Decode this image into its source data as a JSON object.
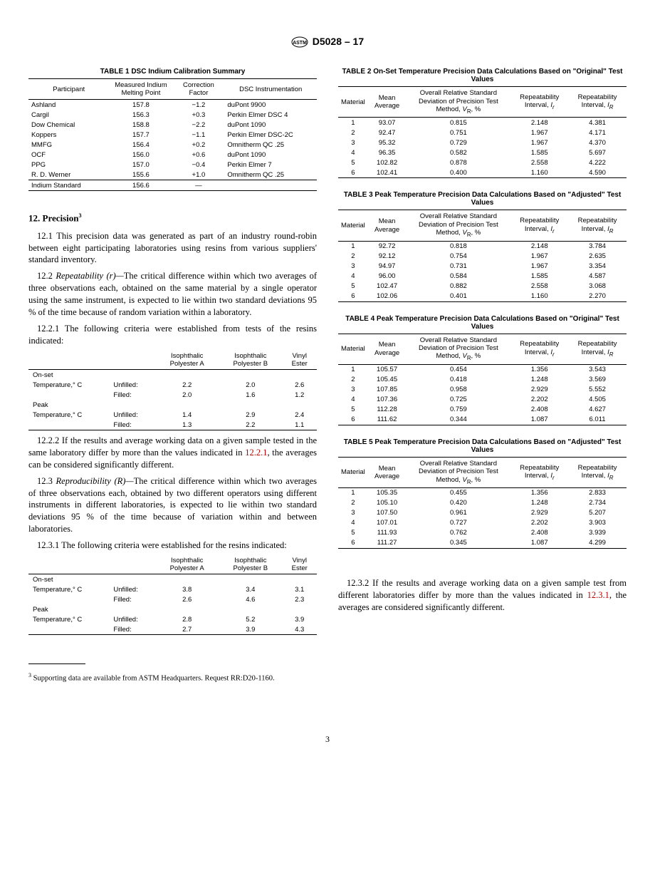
{
  "header": {
    "designation": "D5028 – 17"
  },
  "table1": {
    "title": "TABLE 1 DSC Indium Calibration Summary",
    "headers": [
      "Participant",
      "Measured Indium Melting Point",
      "Correction Factor",
      "DSC Instrumentation"
    ],
    "rows": [
      [
        "Ashland",
        "157.8",
        "−1.2",
        "duPont 9900"
      ],
      [
        "Cargil",
        "156.3",
        "+0.3",
        "Perkin Elmer DSC 4"
      ],
      [
        "Dow Chemical",
        "158.8",
        "−2.2",
        "duPont 1090"
      ],
      [
        "Koppers",
        "157.7",
        "−1.1",
        "Perkin Elmer DSC-2C"
      ],
      [
        "MMFG",
        "156.4",
        "+0.2",
        "Omnitherm QC .25"
      ],
      [
        "OCF",
        "156.0",
        "+0.6",
        "duPont 1090"
      ],
      [
        "PPG",
        "157.0",
        "−0.4",
        "Perkin Elmer 7"
      ],
      [
        "R. D. Werner",
        "155.6",
        "+1.0",
        "Omnitherm QC .25"
      ]
    ],
    "std_row": [
      "Indium Standard",
      "156.6",
      "—",
      ""
    ]
  },
  "table2": {
    "title": "TABLE 2 On-Set Temperature Precision Data Calculations Based on \"Original\" Test Values",
    "rows": [
      [
        "1",
        "93.07",
        "0.815",
        "2.148",
        "4.381"
      ],
      [
        "2",
        "92.47",
        "0.751",
        "1.967",
        "4.171"
      ],
      [
        "3",
        "95.32",
        "0.729",
        "1.967",
        "4.370"
      ],
      [
        "4",
        "96.35",
        "0.582",
        "1.585",
        "5.697"
      ],
      [
        "5",
        "102.82",
        "0.878",
        "2.558",
        "4.222"
      ],
      [
        "6",
        "102.41",
        "0.400",
        "1.160",
        "4.590"
      ]
    ]
  },
  "table3": {
    "title": "TABLE 3 Peak Temperature Precision Data Calculations Based on \"Adjusted\" Test Values",
    "rows": [
      [
        "1",
        "92.72",
        "0.818",
        "2.148",
        "3.784"
      ],
      [
        "2",
        "92.12",
        "0.754",
        "1.967",
        "2.635"
      ],
      [
        "3",
        "94.97",
        "0.731",
        "1.967",
        "3.354"
      ],
      [
        "4",
        "96.00",
        "0.584",
        "1.585",
        "4.587"
      ],
      [
        "5",
        "102.47",
        "0.882",
        "2.558",
        "3.068"
      ],
      [
        "6",
        "102.06",
        "0.401",
        "1.160",
        "2.270"
      ]
    ]
  },
  "table4": {
    "title": "TABLE 4 Peak Temperature Precision Data Calculations Based on \"Original\" Test Values",
    "rows": [
      [
        "1",
        "105.57",
        "0.454",
        "1.356",
        "3.543"
      ],
      [
        "2",
        "105.45",
        "0.418",
        "1.248",
        "3.569"
      ],
      [
        "3",
        "107.85",
        "0.958",
        "2.929",
        "5.552"
      ],
      [
        "4",
        "107.36",
        "0.725",
        "2.202",
        "4.505"
      ],
      [
        "5",
        "112.28",
        "0.759",
        "2.408",
        "4.627"
      ],
      [
        "6",
        "111.62",
        "0.344",
        "1.087",
        "6.011"
      ]
    ]
  },
  "table5": {
    "title": "TABLE 5 Peak Temperature Precision Data Calculations Based on \"Adjusted\" Test Values",
    "rows": [
      [
        "1",
        "105.35",
        "0.455",
        "1.356",
        "2.833"
      ],
      [
        "2",
        "105.10",
        "0.420",
        "1.248",
        "2.734"
      ],
      [
        "3",
        "107.50",
        "0.961",
        "2.929",
        "5.207"
      ],
      [
        "4",
        "107.01",
        "0.727",
        "2.202",
        "3.903"
      ],
      [
        "5",
        "111.93",
        "0.762",
        "2.408",
        "3.939"
      ],
      [
        "6",
        "111.27",
        "0.345",
        "1.087",
        "4.299"
      ]
    ]
  },
  "precision_headers": {
    "h1": "Material",
    "h2": "Mean Average",
    "h3": "Overall Relative Standard Deviation of Precision Test Method, ",
    "h3_vr": "V",
    "h3_sub": "R",
    "h3_tail": ", %",
    "h4_pre": "Repeatability Interval, ",
    "h4_ir": "I",
    "h4_r": "r",
    "h5_pre": "Repeatability Interval, ",
    "h5_ir": "I",
    "h5_r": "R"
  },
  "section12": {
    "heading": "12. Precision",
    "fn_mark": "3",
    "p1_num": "12.1",
    "p1": "This precision data was generated as part of an industry round-robin between eight participating laboratories using resins from various suppliers' standard inventory.",
    "p2_num": "12.2",
    "p2_title": "Repeatability (r)—",
    "p2": "The critical difference within which two averages of three observations each, obtained on the same material by a single operator using the same instrument, is expected to lie within two standard deviations 95 % of the time because of random variation within a laboratory.",
    "p21_num": "12.2.1",
    "p21": "The following criteria were established from tests of the resins indicated:",
    "mini1": {
      "headers": [
        "",
        "",
        "Isophthalic Polyester A",
        "Isophthalic Polyester B",
        "Vinyl Ester"
      ],
      "rows": [
        [
          "On-set",
          "",
          "",
          "",
          ""
        ],
        [
          "Temperature,° C",
          "Unfilled:",
          "2.2",
          "2.0",
          "2.6"
        ],
        [
          "",
          "Filled:",
          "2.0",
          "1.6",
          "1.2"
        ],
        [
          "Peak",
          "",
          "",
          "",
          ""
        ],
        [
          "Temperature,° C",
          "Unfilled:",
          "1.4",
          "2.9",
          "2.4"
        ],
        [
          "",
          "Filled:",
          "1.3",
          "2.2",
          "1.1"
        ]
      ]
    },
    "p22_num": "12.2.2",
    "p22a": "If the results and average working data on a given sample tested in the same laboratory differ by more than the values indicated in ",
    "p22_ref": "12.2.1",
    "p22b": ", the averages can be considered significantly different.",
    "p3_num": "12.3",
    "p3_title": "Reproducibility (R)—",
    "p3": "The critical difference within which two averages of three observations each, obtained by two different operators using different instruments in different laboratories, is expected to lie within two standard deviations 95 % of the time because of variation within and between laboratories.",
    "p31_num": "12.3.1",
    "p31": "The following criteria were established for the resins indicated:",
    "mini2": {
      "rows": [
        [
          "On-set",
          "",
          "",
          "",
          ""
        ],
        [
          "Temperature,° C",
          "Unfilled:",
          "3.8",
          "3.4",
          "3.1"
        ],
        [
          "",
          "Filled:",
          "2.6",
          "4.6",
          "2.3"
        ],
        [
          "Peak",
          "",
          "",
          "",
          ""
        ],
        [
          "Temperature,° C",
          "Unfilled:",
          "2.8",
          "5.2",
          "3.9"
        ],
        [
          "",
          "Filled:",
          "2.7",
          "3.9",
          "4.3"
        ]
      ]
    },
    "p32_num": "12.3.2",
    "p32a": "If the results and average working data on a given sample test from different laboratories differ by more than the values indicated in ",
    "p32_ref": "12.3.1",
    "p32b": ", the averages are considered significantly different.",
    "footnote_mark": "3",
    "footnote": "Supporting data are available from ASTM Headquarters. Request RR:D20-1160."
  },
  "pagenum": "3"
}
